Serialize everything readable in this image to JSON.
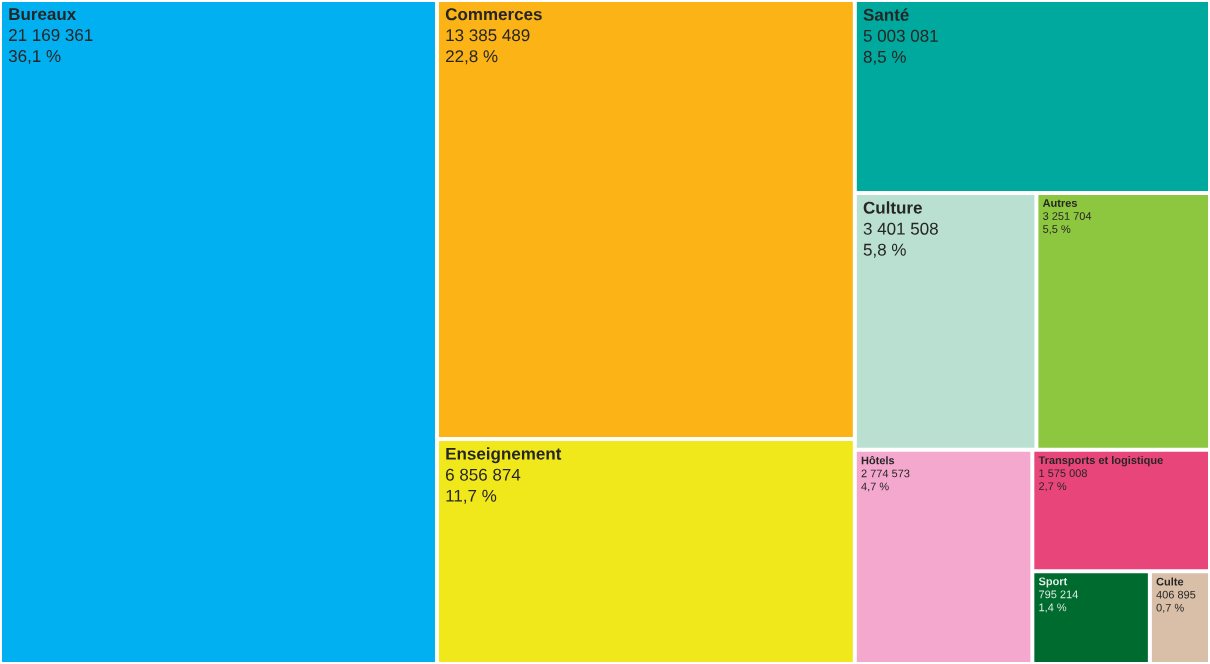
{
  "chart_data": {
    "type": "other",
    "categories": [
      "Bureaux",
      "Commerces",
      "Enseignement",
      "Santé",
      "Culture",
      "Autres",
      "Hôtels",
      "Transports et logistique",
      "Sport",
      "Culte"
    ],
    "colors": [
      "#00b0f0",
      "#fbb316",
      "#f0e81a",
      "#00a99d",
      "#b9e0d0",
      "#8dc63f",
      "#f4a8cd",
      "#e8457a",
      "#006b2e",
      "#d9bfa8"
    ],
    "values": [
      21169361,
      13385489,
      6856874,
      5003081,
      3401508,
      3251704,
      2774573,
      1575008,
      795214,
      406895
    ],
    "value_labels": [
      "21 169 361",
      "13 385 489",
      "6 856 874",
      "5 003 081",
      "3 401 508",
      "3 251 704",
      "2 774 573",
      "1 575 008",
      "795 214",
      "406 895"
    ],
    "annotations": [
      "36,1 %",
      "22,8 %",
      "11,7 %",
      "8,5 %",
      "5,8 %",
      "5,5 %",
      "4,7 %",
      "2,7 %",
      "1,4 %",
      "0,7 %"
    ]
  }
}
